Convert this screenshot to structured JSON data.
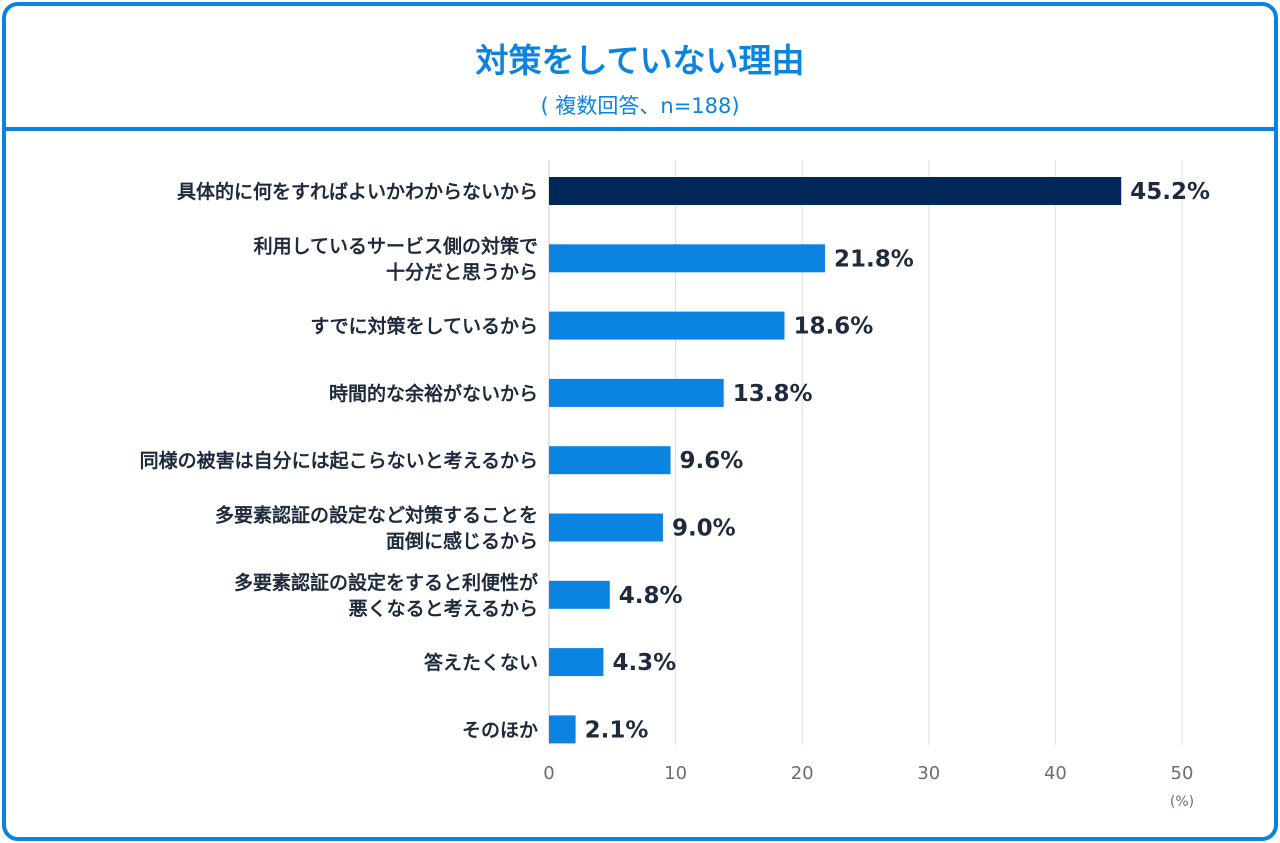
{
  "chart_data": {
    "type": "bar",
    "orientation": "horizontal",
    "title": "対策をしていない理由",
    "subtitle": "( 複数回答、n=188)",
    "categories": [
      [
        "具体的に何をすればよいかわからないから"
      ],
      [
        "利用しているサービス側の対策で",
        "十分だと思うから"
      ],
      [
        "すでに対策をしているから"
      ],
      [
        "時間的な余裕がないから"
      ],
      [
        "同様の被害は自分には起こらないと考えるから"
      ],
      [
        "多要素認証の設定など対策することを",
        "面倒に感じるから"
      ],
      [
        "多要素認証の設定をすると利便性が",
        "悪くなると考えるから"
      ],
      [
        "答えたくない"
      ],
      [
        "そのほか"
      ]
    ],
    "values": [
      45.2,
      21.8,
      18.6,
      13.8,
      9.6,
      9.0,
      4.8,
      4.3,
      2.1
    ],
    "value_labels": [
      "45.2%",
      "21.8%",
      "18.6%",
      "13.8%",
      "9.6%",
      "9.0%",
      "4.8%",
      "4.3%",
      "2.1%"
    ],
    "bar_colors": [
      "#00275a",
      "#0a84e0",
      "#0a84e0",
      "#0a84e0",
      "#0a84e0",
      "#0a84e0",
      "#0a84e0",
      "#0a84e0",
      "#0a84e0"
    ],
    "xlim": [
      0,
      50
    ],
    "xticks": [
      "0",
      "10",
      "20",
      "30",
      "40",
      "50"
    ],
    "xunit": "(%)",
    "grid": true
  }
}
